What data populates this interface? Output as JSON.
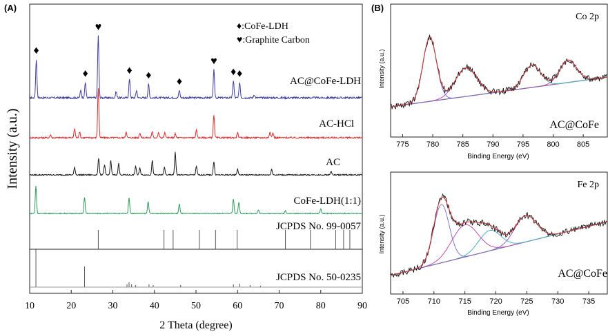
{
  "panel_a": {
    "label": "(A)",
    "legend": {
      "entries": [
        {
          "symbol": "♦",
          "text": ":CoFe-LDH"
        },
        {
          "symbol": "♥",
          "text": ":Graphite Carbon"
        }
      ]
    },
    "xlabel": "2 Theta (degree)",
    "ylabel": "Intensity (a.u.)",
    "xlim": [
      10,
      90
    ],
    "xticks": [
      "10",
      "20",
      "30",
      "40",
      "50",
      "60",
      "70",
      "80",
      "90"
    ],
    "series": [
      {
        "name": "AC@CoFe-LDH",
        "color": "#3d3d9e",
        "baseline": 0.0,
        "peaks": [
          [
            11.6,
            0.62
          ],
          [
            22.3,
            0.12
          ],
          [
            23.4,
            0.25
          ],
          [
            26.5,
            1.0
          ],
          [
            30.8,
            0.1
          ],
          [
            34.0,
            0.3
          ],
          [
            35.7,
            0.12
          ],
          [
            38.6,
            0.22
          ],
          [
            46.0,
            0.12
          ],
          [
            54.3,
            0.45
          ],
          [
            59.0,
            0.28
          ],
          [
            60.5,
            0.25
          ],
          [
            64.0,
            0.05
          ]
        ],
        "markers": [
          [
            11.6,
            "♦"
          ],
          [
            23.4,
            "♦"
          ],
          [
            26.5,
            "♥"
          ],
          [
            34.0,
            "♦"
          ],
          [
            38.6,
            "♦"
          ],
          [
            46.0,
            "♦"
          ],
          [
            54.3,
            "♥"
          ],
          [
            59.0,
            "♦"
          ],
          [
            60.5,
            "♦"
          ]
        ]
      },
      {
        "name": "AC-HCl",
        "color": "#d92b2b",
        "baseline": 0.0,
        "peaks": [
          [
            15.0,
            0.06
          ],
          [
            20.8,
            0.18
          ],
          [
            22.0,
            0.12
          ],
          [
            26.5,
            1.0
          ],
          [
            33.2,
            0.12
          ],
          [
            36.5,
            0.1
          ],
          [
            39.5,
            0.12
          ],
          [
            41.0,
            0.1
          ],
          [
            42.5,
            0.1
          ],
          [
            45.0,
            0.08
          ],
          [
            50.1,
            0.15
          ],
          [
            54.3,
            0.45
          ],
          [
            60.0,
            0.1
          ],
          [
            67.8,
            0.12
          ],
          [
            68.5,
            0.1
          ]
        ],
        "markers": []
      },
      {
        "name": "AC",
        "color": "#1a1a1a",
        "baseline": 0.0,
        "peaks": [
          [
            20.8,
            0.2
          ],
          [
            26.6,
            0.45
          ],
          [
            28.0,
            0.25
          ],
          [
            29.5,
            0.38
          ],
          [
            31.4,
            0.3
          ],
          [
            35.5,
            0.22
          ],
          [
            36.5,
            0.18
          ],
          [
            39.5,
            0.38
          ],
          [
            42.4,
            0.2
          ],
          [
            45.0,
            0.6
          ],
          [
            50.1,
            0.22
          ],
          [
            54.3,
            0.35
          ],
          [
            60.0,
            0.15
          ],
          [
            68.2,
            0.15
          ],
          [
            82.5,
            0.1
          ]
        ],
        "markers": []
      },
      {
        "name": "CoFe-LDH(1:1)",
        "color": "#2f9a5c",
        "baseline": 0.0,
        "peaks": [
          [
            11.5,
            0.95
          ],
          [
            23.2,
            0.55
          ],
          [
            33.9,
            0.55
          ],
          [
            38.5,
            0.42
          ],
          [
            46.0,
            0.32
          ],
          [
            59.0,
            0.5
          ],
          [
            60.3,
            0.4
          ],
          [
            65.0,
            0.12
          ],
          [
            71.5,
            0.1
          ],
          [
            80.0,
            0.15
          ]
        ],
        "markers": []
      }
    ],
    "references": [
      {
        "label": "JCPDS No. 99-0057",
        "lines": [
          26.5,
          42.3,
          44.5,
          50.8,
          54.7,
          59.9,
          71.5,
          77.5,
          83.6,
          85.5,
          87.0
        ]
      },
      {
        "label": "JCPDS No. 50-0235",
        "lines": [
          11.5,
          23.2,
          33.4,
          33.9,
          34.5,
          35.5,
          38.7,
          39.7,
          46.3,
          59.0,
          60.5,
          63.0,
          65.5
        ]
      }
    ]
  },
  "panel_b": {
    "label": "(B)",
    "plots": [
      {
        "title": "Co 2p",
        "sample": "AC@CoFe",
        "xlabel": "Binding Energy (eV)",
        "ylabel": "Intensity (a.u.)",
        "xlim": [
          773,
          809
        ],
        "xticks": [
          "775",
          "780",
          "785",
          "790",
          "795",
          "800",
          "805"
        ],
        "peaks": [
          [
            779.5,
            1.0,
            1.6
          ],
          [
            785.5,
            0.45,
            2.5
          ],
          [
            796.5,
            0.35,
            2.0
          ],
          [
            802.5,
            0.35,
            2.0
          ]
        ]
      },
      {
        "title": "Fe 2p",
        "sample": "AC@CoFe",
        "xlabel": "Binding Energy (eV)",
        "ylabel": "Intensity (a.u.)",
        "xlim": [
          703,
          738
        ],
        "xticks": [
          "705",
          "710",
          "715",
          "720",
          "725",
          "730",
          "735"
        ],
        "peaks": [
          [
            711.2,
            1.0,
            1.8
          ],
          [
            715.0,
            0.55,
            3.0
          ],
          [
            719.0,
            0.35,
            2.5
          ],
          [
            724.8,
            0.45,
            2.5
          ]
        ]
      }
    ]
  },
  "chart_data": [
    {
      "type": "line",
      "title": "",
      "xlabel": "2 Theta (degree)",
      "ylabel": "Intensity (a.u.)",
      "xlim": [
        10,
        90
      ],
      "series": [
        {
          "name": "AC@CoFe-LDH",
          "peaks_2theta": [
            11.6,
            23.4,
            26.5,
            34.0,
            38.6,
            46.0,
            54.3,
            59.0,
            60.5
          ]
        },
        {
          "name": "AC-HCl",
          "peaks_2theta": [
            20.8,
            26.5,
            33.2,
            50.1,
            54.3,
            67.8
          ]
        },
        {
          "name": "AC",
          "peaks_2theta": [
            26.6,
            29.5,
            31.4,
            39.5,
            45.0,
            54.3
          ]
        },
        {
          "name": "CoFe-LDH(1:1)",
          "peaks_2theta": [
            11.5,
            23.2,
            33.9,
            38.5,
            46.0,
            59.0,
            60.3
          ]
        }
      ],
      "legend": [
        "♦:CoFe-LDH",
        "♥:Graphite Carbon"
      ],
      "grid": false
    },
    {
      "type": "line",
      "title": "Co 2p",
      "xlabel": "Binding Energy (eV)",
      "ylabel": "Intensity (a.u.)",
      "xlim": [
        773,
        809
      ],
      "peaks_eV": [
        779.5,
        785.5,
        796.5,
        802.5
      ],
      "grid": false
    },
    {
      "type": "line",
      "title": "Fe 2p",
      "xlabel": "Binding Energy (eV)",
      "ylabel": "Intensity (a.u.)",
      "xlim": [
        703,
        738
      ],
      "peaks_eV": [
        711.2,
        715.0,
        719.0,
        724.8
      ],
      "grid": false
    }
  ]
}
